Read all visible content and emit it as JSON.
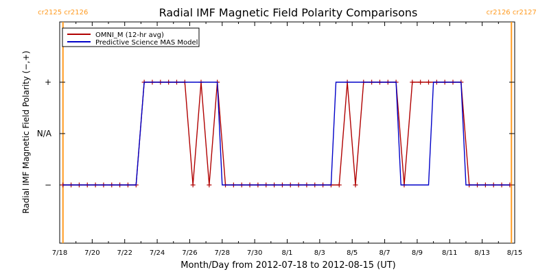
{
  "chart_data": {
    "type": "line",
    "title": "Radial IMF Magnetic Field Polarity Comparisons",
    "xlabel": "Month/Day from 2012-07-18 to 2012-08-15 (UT)",
    "ylabel": "Radial IMF Magnetic Field Polarity (−,+)",
    "x_start_date": "2012-07-18",
    "xlim": [
      0,
      28
    ],
    "ylim": [
      -2,
      2
    ],
    "x_ticks": [
      {
        "x": 0,
        "label": "7/18"
      },
      {
        "x": 2,
        "label": "7/20"
      },
      {
        "x": 4,
        "label": "7/22"
      },
      {
        "x": 6,
        "label": "7/24"
      },
      {
        "x": 8,
        "label": "7/26"
      },
      {
        "x": 10,
        "label": "7/28"
      },
      {
        "x": 12,
        "label": "7/30"
      },
      {
        "x": 14,
        "label": "8/1"
      },
      {
        "x": 16,
        "label": "8/3"
      },
      {
        "x": 18,
        "label": "8/5"
      },
      {
        "x": 20,
        "label": "8/7"
      },
      {
        "x": 22,
        "label": "8/9"
      },
      {
        "x": 24,
        "label": "8/11"
      },
      {
        "x": 26,
        "label": "8/13"
      },
      {
        "x": 28,
        "label": "8/15"
      }
    ],
    "y_ticks": [
      {
        "y": 1,
        "label": "+"
      },
      {
        "y": 0,
        "label": "N/A"
      },
      {
        "y": -1,
        "label": "−"
      }
    ],
    "legend": {
      "position": "top-left",
      "entries": [
        {
          "label": "OMNI_M (12-hr avg)",
          "color": "#b00000"
        },
        {
          "label": "Predictive Science MAS Model",
          "color": "#0000c8"
        }
      ]
    },
    "vertical_markers": [
      {
        "x": 0.2,
        "label": "cr2125 cr2126",
        "color": "#ff9a1f"
      },
      {
        "x": 27.8,
        "label": "cr2126 cr2127",
        "color": "#ff9a1f"
      }
    ],
    "series": [
      {
        "name": "OMNI_M (12-hr avg)",
        "color": "#b00000",
        "marker": "+",
        "x": [
          0.2,
          0.7,
          1.2,
          1.7,
          2.2,
          2.7,
          3.2,
          3.7,
          4.2,
          4.7,
          5.2,
          5.7,
          6.2,
          6.7,
          7.2,
          7.7,
          8.2,
          8.7,
          9.2,
          9.7,
          10.2,
          10.7,
          11.2,
          11.7,
          12.2,
          12.7,
          13.2,
          13.7,
          14.2,
          14.7,
          15.2,
          15.7,
          16.2,
          16.7,
          17.2,
          17.7,
          18.2,
          18.7,
          19.2,
          19.7,
          20.2,
          20.7,
          21.2,
          21.7,
          22.2,
          22.7,
          23.2,
          23.7,
          24.2,
          24.7,
          25.2,
          25.7,
          26.2,
          26.7,
          27.2,
          27.7
        ],
        "y": [
          -1,
          -1,
          -1,
          -1,
          -1,
          -1,
          -1,
          -1,
          -1,
          -1,
          1,
          1,
          1,
          1,
          1,
          1,
          -1,
          1,
          -1,
          1,
          -1,
          -1,
          -1,
          -1,
          -1,
          -1,
          -1,
          -1,
          -1,
          -1,
          -1,
          -1,
          -1,
          -1,
          -1,
          1,
          -1,
          1,
          1,
          1,
          1,
          1,
          -1,
          1,
          1,
          1,
          1,
          1,
          1,
          1,
          -1,
          -1,
          -1,
          -1,
          -1,
          -1
        ]
      },
      {
        "name": "Predictive Science MAS Model",
        "color": "#0000c8",
        "x": [
          0.2,
          4.7,
          5.2,
          9.7,
          10.0,
          16.7,
          17.0,
          20.7,
          21.0,
          22.7,
          23.0,
          24.7,
          25.0,
          27.7
        ],
        "y": [
          -1,
          -1,
          1,
          1,
          -1,
          -1,
          1,
          1,
          -1,
          -1,
          1,
          1,
          -1,
          -1
        ]
      }
    ]
  }
}
